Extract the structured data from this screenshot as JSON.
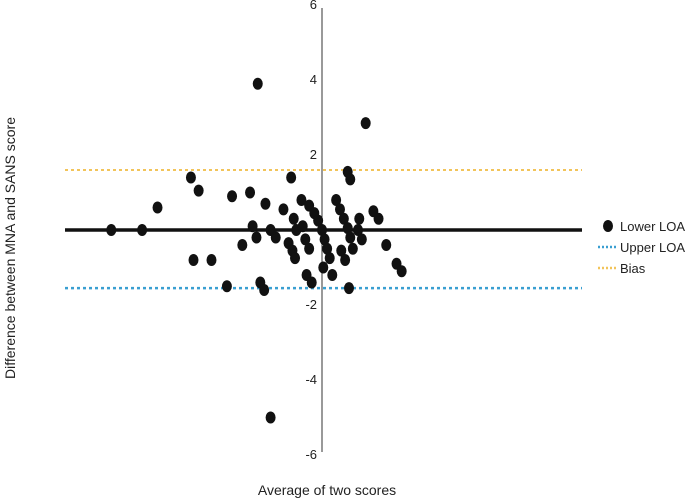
{
  "chart_data": {
    "type": "scatter",
    "title": "",
    "xlabel": "Average of two scores",
    "ylabel": "Difference between MNA and SANS score",
    "ylim": [
      -6,
      6
    ],
    "yticks": [
      6,
      4,
      2,
      -2,
      -4,
      -6
    ],
    "grid": false,
    "legend_position": "right",
    "colors": {
      "points": "#111111",
      "bias_solid": "#111111",
      "upper_loa": "#3a9fd1",
      "bias": "#f2c45a",
      "axis": "#333333"
    },
    "lines": [
      {
        "name": "zero-line",
        "y": 0,
        "style": "solid"
      },
      {
        "name": "bias-line",
        "y": 1.6,
        "style": "dotted"
      },
      {
        "name": "upper-loa-line",
        "y": -1.55,
        "style": "dotted"
      }
    ],
    "legend": [
      {
        "label": "Lower LOA",
        "marker": "dot"
      },
      {
        "label": "Upper LOA",
        "marker": "dotted-blue"
      },
      {
        "label": "Bias",
        "marker": "dotted-yellow"
      }
    ],
    "points": [
      {
        "x": -8.2,
        "y": 0.0
      },
      {
        "x": -7.0,
        "y": 0.0
      },
      {
        "x": -6.4,
        "y": 0.6
      },
      {
        "x": -5.1,
        "y": 1.4
      },
      {
        "x": -4.8,
        "y": 1.05
      },
      {
        "x": -5.0,
        "y": -0.8
      },
      {
        "x": -4.3,
        "y": -0.8
      },
      {
        "x": -3.5,
        "y": 0.9
      },
      {
        "x": -3.7,
        "y": -1.5
      },
      {
        "x": -2.8,
        "y": 1.0
      },
      {
        "x": -2.7,
        "y": 0.1
      },
      {
        "x": -2.55,
        "y": -0.2
      },
      {
        "x": -3.1,
        "y": -0.4
      },
      {
        "x": -2.5,
        "y": 3.9
      },
      {
        "x": -2.4,
        "y": -1.4
      },
      {
        "x": -2.25,
        "y": -1.6
      },
      {
        "x": -2.0,
        "y": 0.0
      },
      {
        "x": -1.8,
        "y": -0.2
      },
      {
        "x": -2.2,
        "y": 0.7
      },
      {
        "x": -1.2,
        "y": 1.4
      },
      {
        "x": -1.5,
        "y": 0.55
      },
      {
        "x": -1.1,
        "y": 0.3
      },
      {
        "x": -1.0,
        "y": 0.0
      },
      {
        "x": -1.3,
        "y": -0.35
      },
      {
        "x": -1.15,
        "y": -0.55
      },
      {
        "x": -1.05,
        "y": -0.75
      },
      {
        "x": -0.8,
        "y": 0.8
      },
      {
        "x": -0.75,
        "y": 0.1
      },
      {
        "x": -0.65,
        "y": -0.25
      },
      {
        "x": -0.5,
        "y": -0.5
      },
      {
        "x": -0.6,
        "y": -1.2
      },
      {
        "x": -0.4,
        "y": -1.4
      },
      {
        "x": -0.5,
        "y": 0.65
      },
      {
        "x": -0.3,
        "y": 0.45
      },
      {
        "x": -0.15,
        "y": 0.25
      },
      {
        "x": 0.0,
        "y": 0.0
      },
      {
        "x": 0.1,
        "y": -0.25
      },
      {
        "x": 0.2,
        "y": -0.5
      },
      {
        "x": 0.05,
        "y": -1.0
      },
      {
        "x": 0.3,
        "y": -0.75
      },
      {
        "x": 0.4,
        "y": -1.2
      },
      {
        "x": 0.55,
        "y": 0.8
      },
      {
        "x": 0.7,
        "y": 0.55
      },
      {
        "x": 0.85,
        "y": 0.3
      },
      {
        "x": 1.0,
        "y": 0.05
      },
      {
        "x": 1.1,
        "y": -0.2
      },
      {
        "x": 0.75,
        "y": -0.55
      },
      {
        "x": 0.9,
        "y": -0.8
      },
      {
        "x": 1.05,
        "y": -1.55
      },
      {
        "x": 1.4,
        "y": 0.0
      },
      {
        "x": 1.55,
        "y": -0.25
      },
      {
        "x": 1.2,
        "y": -0.5
      },
      {
        "x": 1.0,
        "y": 1.55
      },
      {
        "x": 1.1,
        "y": 1.35
      },
      {
        "x": 1.45,
        "y": 0.3
      },
      {
        "x": 1.7,
        "y": 2.85
      },
      {
        "x": 2.0,
        "y": 0.5
      },
      {
        "x": 2.2,
        "y": 0.3
      },
      {
        "x": 2.5,
        "y": -0.4
      },
      {
        "x": 2.9,
        "y": -0.9
      },
      {
        "x": 3.1,
        "y": -1.1
      },
      {
        "x": -2.0,
        "y": -5.0
      }
    ]
  }
}
